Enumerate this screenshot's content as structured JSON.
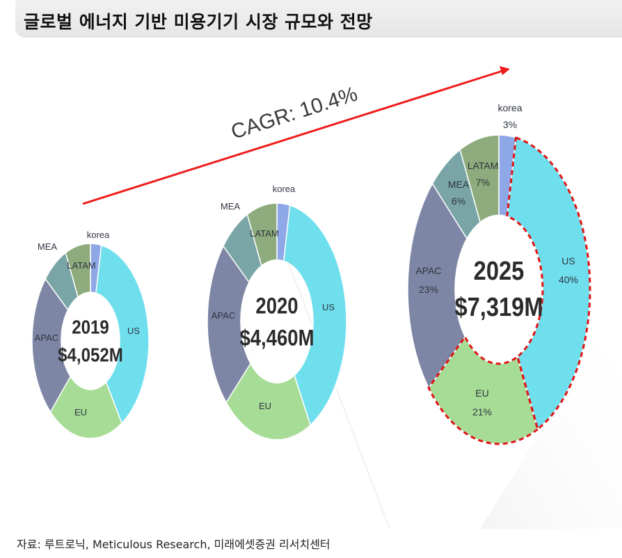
{
  "title": "글로벌 에너지 기반 미용기기 시장 규모와 전망",
  "source": "자료: 루트로닉, Meticulous Research, 미래에셋증권 리서치센터",
  "cagr_label": "CAGR: 10.4%",
  "colors": {
    "korea": "#8ea7e6",
    "US": "#6fdfee",
    "EU": "#a6dc96",
    "APAC": "#7d86a4",
    "MEA": "#79a5a6",
    "LATAM": "#8dab7c",
    "arrow": "#ee1c1c",
    "highlight": "#e01515"
  },
  "chart_data": [
    {
      "type": "pie",
      "year": "2019",
      "center_year": "2019",
      "center_value": "$4,052M",
      "total": 4052,
      "unit": "USD million",
      "segments": [
        {
          "name": "korea",
          "label": "korea",
          "share": 0.03
        },
        {
          "name": "US",
          "label": "US",
          "share": 0.38
        },
        {
          "name": "EU",
          "label": "EU",
          "share": 0.21
        },
        {
          "name": "APAC",
          "label": "APAC",
          "share": 0.24
        },
        {
          "name": "MEA",
          "label": "MEA",
          "share": 0.07
        },
        {
          "name": "LATAM",
          "label": "LATAM",
          "share": 0.07
        }
      ]
    },
    {
      "type": "pie",
      "year": "2020",
      "center_year": "2020",
      "center_value": "$4,460M",
      "total": 4460,
      "unit": "USD million",
      "segments": [
        {
          "name": "korea",
          "label": "korea",
          "share": 0.03
        },
        {
          "name": "US",
          "label": "US",
          "share": 0.39
        },
        {
          "name": "EU",
          "label": "EU",
          "share": 0.21
        },
        {
          "name": "APAC",
          "label": "APAC",
          "share": 0.23
        },
        {
          "name": "MEA",
          "label": "MEA",
          "share": 0.07
        },
        {
          "name": "LATAM",
          "label": "LATAM",
          "share": 0.07
        }
      ]
    },
    {
      "type": "pie",
      "year": "2025",
      "center_year": "2025",
      "center_value": "$7,319M",
      "total": 7319,
      "unit": "USD million",
      "highlighted": [
        "US",
        "EU"
      ],
      "segments": [
        {
          "name": "korea",
          "label": "korea",
          "pct_label": "3%",
          "share": 0.03
        },
        {
          "name": "US",
          "label": "US",
          "pct_label": "40%",
          "share": 0.4
        },
        {
          "name": "EU",
          "label": "EU",
          "pct_label": "21%",
          "share": 0.21
        },
        {
          "name": "APAC",
          "label": "APAC",
          "pct_label": "23%",
          "share": 0.23
        },
        {
          "name": "MEA",
          "label": "MEA",
          "pct_label": "6%",
          "share": 0.06
        },
        {
          "name": "LATAM",
          "label": "LATAM",
          "pct_label": "7%",
          "share": 0.07
        }
      ]
    }
  ]
}
